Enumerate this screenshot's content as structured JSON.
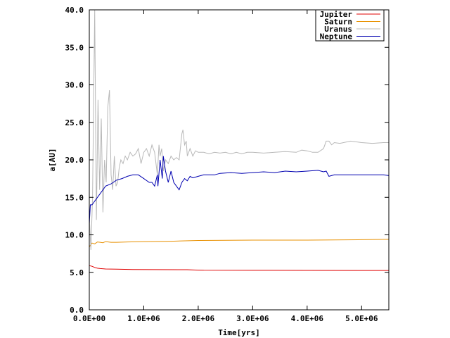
{
  "chart_data": {
    "type": "line",
    "title": "",
    "xlabel": "Time[yrs]",
    "ylabel": "a[AU]",
    "xlim": [
      0,
      5500000
    ],
    "ylim": [
      0,
      40
    ],
    "x_ticks": [
      0,
      1000000,
      2000000,
      3000000,
      4000000,
      5000000
    ],
    "x_tick_labels": [
      "0.0E+00",
      "1.0E+06",
      "2.0E+06",
      "3.0E+06",
      "4.0E+06",
      "5.0E+06"
    ],
    "y_ticks": [
      0,
      5,
      10,
      15,
      20,
      25,
      30,
      35,
      40
    ],
    "y_tick_labels": [
      "0.0",
      "5.0",
      "10.0",
      "15.0",
      "20.0",
      "25.0",
      "30.0",
      "35.0",
      "40.0"
    ],
    "grid": false,
    "legend_position": "top-right",
    "series": [
      {
        "name": "Jupiter",
        "color": "#e00000",
        "x": [
          0,
          50000,
          100000,
          150000,
          200000,
          300000,
          500000,
          800000,
          1200000,
          1800000,
          2000000,
          2100000,
          3000000,
          4000000,
          5000000,
          5500000
        ],
        "y": [
          5.9,
          5.8,
          5.65,
          5.55,
          5.5,
          5.45,
          5.42,
          5.38,
          5.36,
          5.35,
          5.3,
          5.28,
          5.27,
          5.26,
          5.25,
          5.25
        ]
      },
      {
        "name": "Saturn",
        "color": "#e89000",
        "x": [
          0,
          50000,
          100000,
          150000,
          200000,
          250000,
          300000,
          400000,
          500000,
          700000,
          1000000,
          1500000,
          2000000,
          3000000,
          4000000,
          5000000,
          5500000
        ],
        "y": [
          8.4,
          8.9,
          8.8,
          9.05,
          9.0,
          8.95,
          9.1,
          9.0,
          9.0,
          9.05,
          9.1,
          9.15,
          9.25,
          9.3,
          9.3,
          9.35,
          9.4
        ]
      },
      {
        "name": "Uranus",
        "color": "#b8b8b8",
        "x": [
          0,
          30000,
          60000,
          100000,
          130000,
          160000,
          190000,
          220000,
          250000,
          280000,
          310000,
          340000,
          370000,
          400000,
          430000,
          460000,
          490000,
          520000,
          550000,
          580000,
          620000,
          660000,
          700000,
          750000,
          800000,
          850000,
          900000,
          950000,
          1000000,
          1050000,
          1100000,
          1150000,
          1200000,
          1250000,
          1280000,
          1300000,
          1330000,
          1360000,
          1400000,
          1450000,
          1500000,
          1550000,
          1600000,
          1650000,
          1700000,
          1720000,
          1750000,
          1780000,
          1800000,
          1850000,
          1900000,
          1950000,
          2000000,
          2100000,
          2200000,
          2300000,
          2400000,
          2500000,
          2600000,
          2700000,
          2800000,
          2900000,
          3000000,
          3200000,
          3400000,
          3600000,
          3800000,
          3900000,
          4000000,
          4100000,
          4200000,
          4300000,
          4350000,
          4400000,
          4450000,
          4500000,
          4600000,
          4800000,
          5000000,
          5200000,
          5400000,
          5500000
        ],
        "y": [
          12.5,
          8.0,
          15.0,
          40.0,
          12.0,
          28.0,
          16.0,
          25.5,
          13.0,
          20.0,
          17.0,
          27.0,
          29.3,
          18.0,
          16.0,
          20.5,
          16.5,
          17.0,
          19.0,
          20.0,
          19.5,
          20.5,
          20.0,
          21.0,
          20.5,
          20.8,
          21.5,
          19.5,
          21.0,
          21.5,
          20.5,
          22.0,
          21.0,
          18.0,
          22.0,
          20.5,
          21.5,
          18.5,
          20.0,
          19.5,
          20.5,
          20.0,
          20.3,
          20.0,
          23.5,
          24.0,
          22.0,
          22.5,
          20.5,
          21.5,
          20.5,
          21.2,
          21.0,
          21.0,
          20.8,
          21.0,
          20.9,
          21.0,
          20.8,
          21.0,
          20.8,
          21.0,
          21.0,
          20.9,
          21.0,
          21.1,
          21.0,
          21.3,
          21.2,
          21.0,
          21.0,
          21.5,
          22.5,
          22.5,
          22.0,
          22.3,
          22.2,
          22.5,
          22.3,
          22.2,
          22.3,
          22.3
        ]
      },
      {
        "name": "Neptune",
        "color": "#0000b0",
        "x": [
          0,
          20000,
          50000,
          100000,
          150000,
          200000,
          250000,
          300000,
          400000,
          500000,
          600000,
          700000,
          800000,
          900000,
          1000000,
          1100000,
          1150000,
          1200000,
          1250000,
          1260000,
          1300000,
          1340000,
          1360000,
          1400000,
          1450000,
          1500000,
          1550000,
          1600000,
          1650000,
          1700000,
          1750000,
          1800000,
          1850000,
          1900000,
          2000000,
          2100000,
          2200000,
          2300000,
          2400000,
          2600000,
          2800000,
          3000000,
          3200000,
          3400000,
          3600000,
          3800000,
          4000000,
          4200000,
          4300000,
          4350000,
          4400000,
          4500000,
          4700000,
          5000000,
          5200000,
          5400000,
          5500000
        ],
        "y": [
          11.5,
          14.0,
          14.0,
          14.5,
          15.0,
          15.5,
          16.0,
          16.5,
          16.8,
          17.3,
          17.5,
          17.8,
          18.0,
          18.0,
          17.5,
          17.0,
          17.0,
          16.5,
          18.0,
          16.5,
          20.0,
          17.5,
          20.5,
          18.5,
          17.0,
          18.5,
          17.0,
          16.5,
          16.0,
          17.0,
          17.5,
          17.2,
          17.8,
          17.6,
          17.8,
          18.0,
          18.0,
          18.0,
          18.2,
          18.3,
          18.2,
          18.3,
          18.4,
          18.3,
          18.5,
          18.4,
          18.5,
          18.6,
          18.4,
          18.5,
          17.8,
          18.0,
          18.0,
          18.0,
          18.0,
          18.0,
          17.9
        ]
      }
    ]
  }
}
